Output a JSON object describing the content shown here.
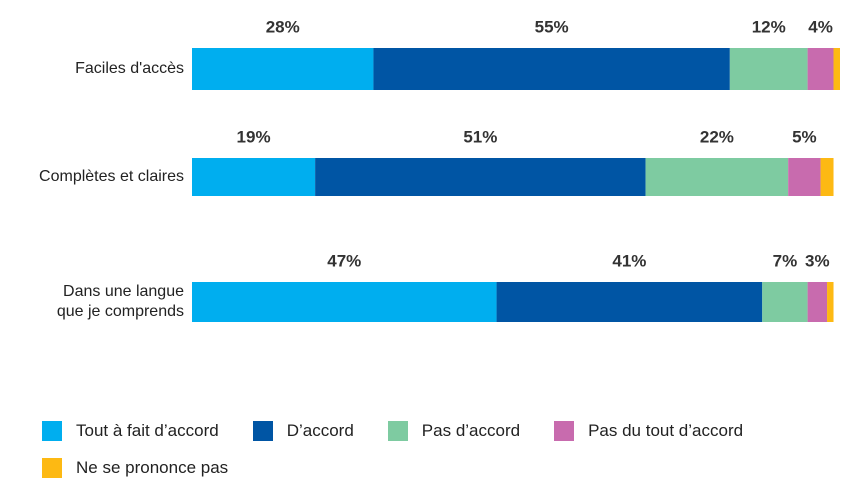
{
  "chart_data": {
    "type": "stacked-bar-horizontal",
    "categories": [
      "Faciles d'accès",
      "Complètes et claires",
      "Dans une langue\nque je comprends"
    ],
    "xlim": [
      0,
      100
    ],
    "series": [
      {
        "name": "Tout à fait d’accord",
        "color": "#00aeef",
        "values": [
          28,
          19,
          47
        ],
        "value_labels": [
          "28%",
          "19%",
          "47%"
        ]
      },
      {
        "name": "D’accord",
        "color": "#0055a4",
        "values": [
          55,
          51,
          41
        ],
        "value_labels": [
          "55%",
          "51%",
          "41%"
        ]
      },
      {
        "name": "Pas d’accord",
        "color": "#7ecba1",
        "values": [
          12,
          22,
          7
        ],
        "value_labels": [
          "12%",
          "22%",
          "7%"
        ]
      },
      {
        "name": "Pas du tout d’accord",
        "color": "#c86bae",
        "values": [
          4,
          5,
          3
        ],
        "value_labels": [
          "4%",
          "5%",
          "3%"
        ]
      },
      {
        "name": "Ne se prononce pas",
        "color": "#fdb913",
        "values": [
          1,
          2,
          1
        ],
        "value_labels": [
          null,
          null,
          null
        ]
      }
    ],
    "legend": "bottom"
  }
}
